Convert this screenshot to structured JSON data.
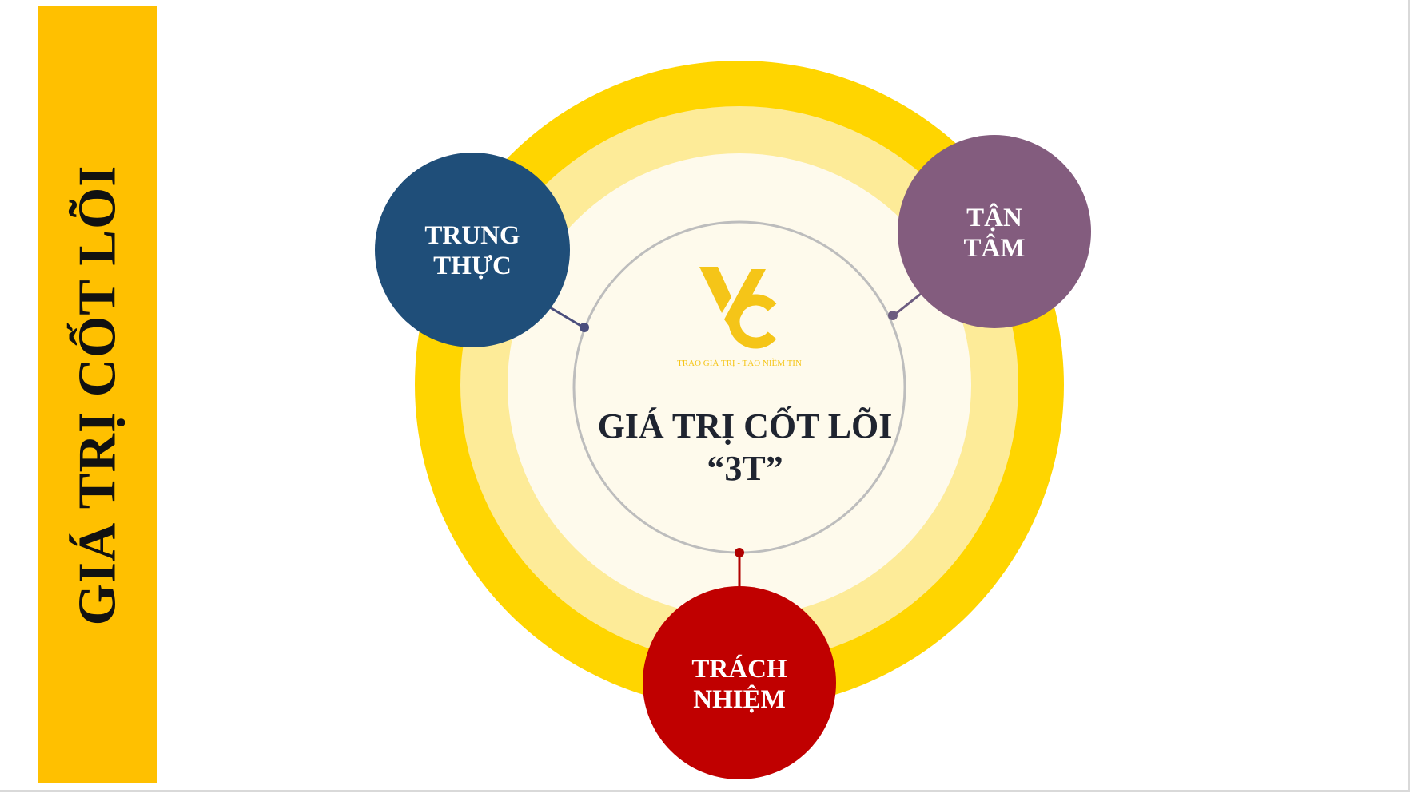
{
  "side_title": "GIÁ TRỊ CỐT LÕI",
  "center": {
    "line1": "GIÁ TRỊ CỐT LÕI",
    "line2": "“3T”"
  },
  "logo": {
    "tagline": "TRAO GIÁ TRỊ - TẠO NIỀM TIN"
  },
  "nodes": {
    "trung_thuc": {
      "line1": "TRUNG",
      "line2": "THỰC",
      "color": "#1F4E79"
    },
    "tan_tam": {
      "line1": "TẬN",
      "line2": "TÂM",
      "color": "#835C7E"
    },
    "trach_nhiem": {
      "line1": "TRÁCH",
      "line2": "NHIỆM",
      "color": "#C00000"
    }
  },
  "colors": {
    "banner": "#FFC000",
    "ring_outer": "#FFD500",
    "ring_middle": "#FDEB98",
    "ring_inner": "#FEFAEC",
    "center_border": "#BDBDBD"
  }
}
